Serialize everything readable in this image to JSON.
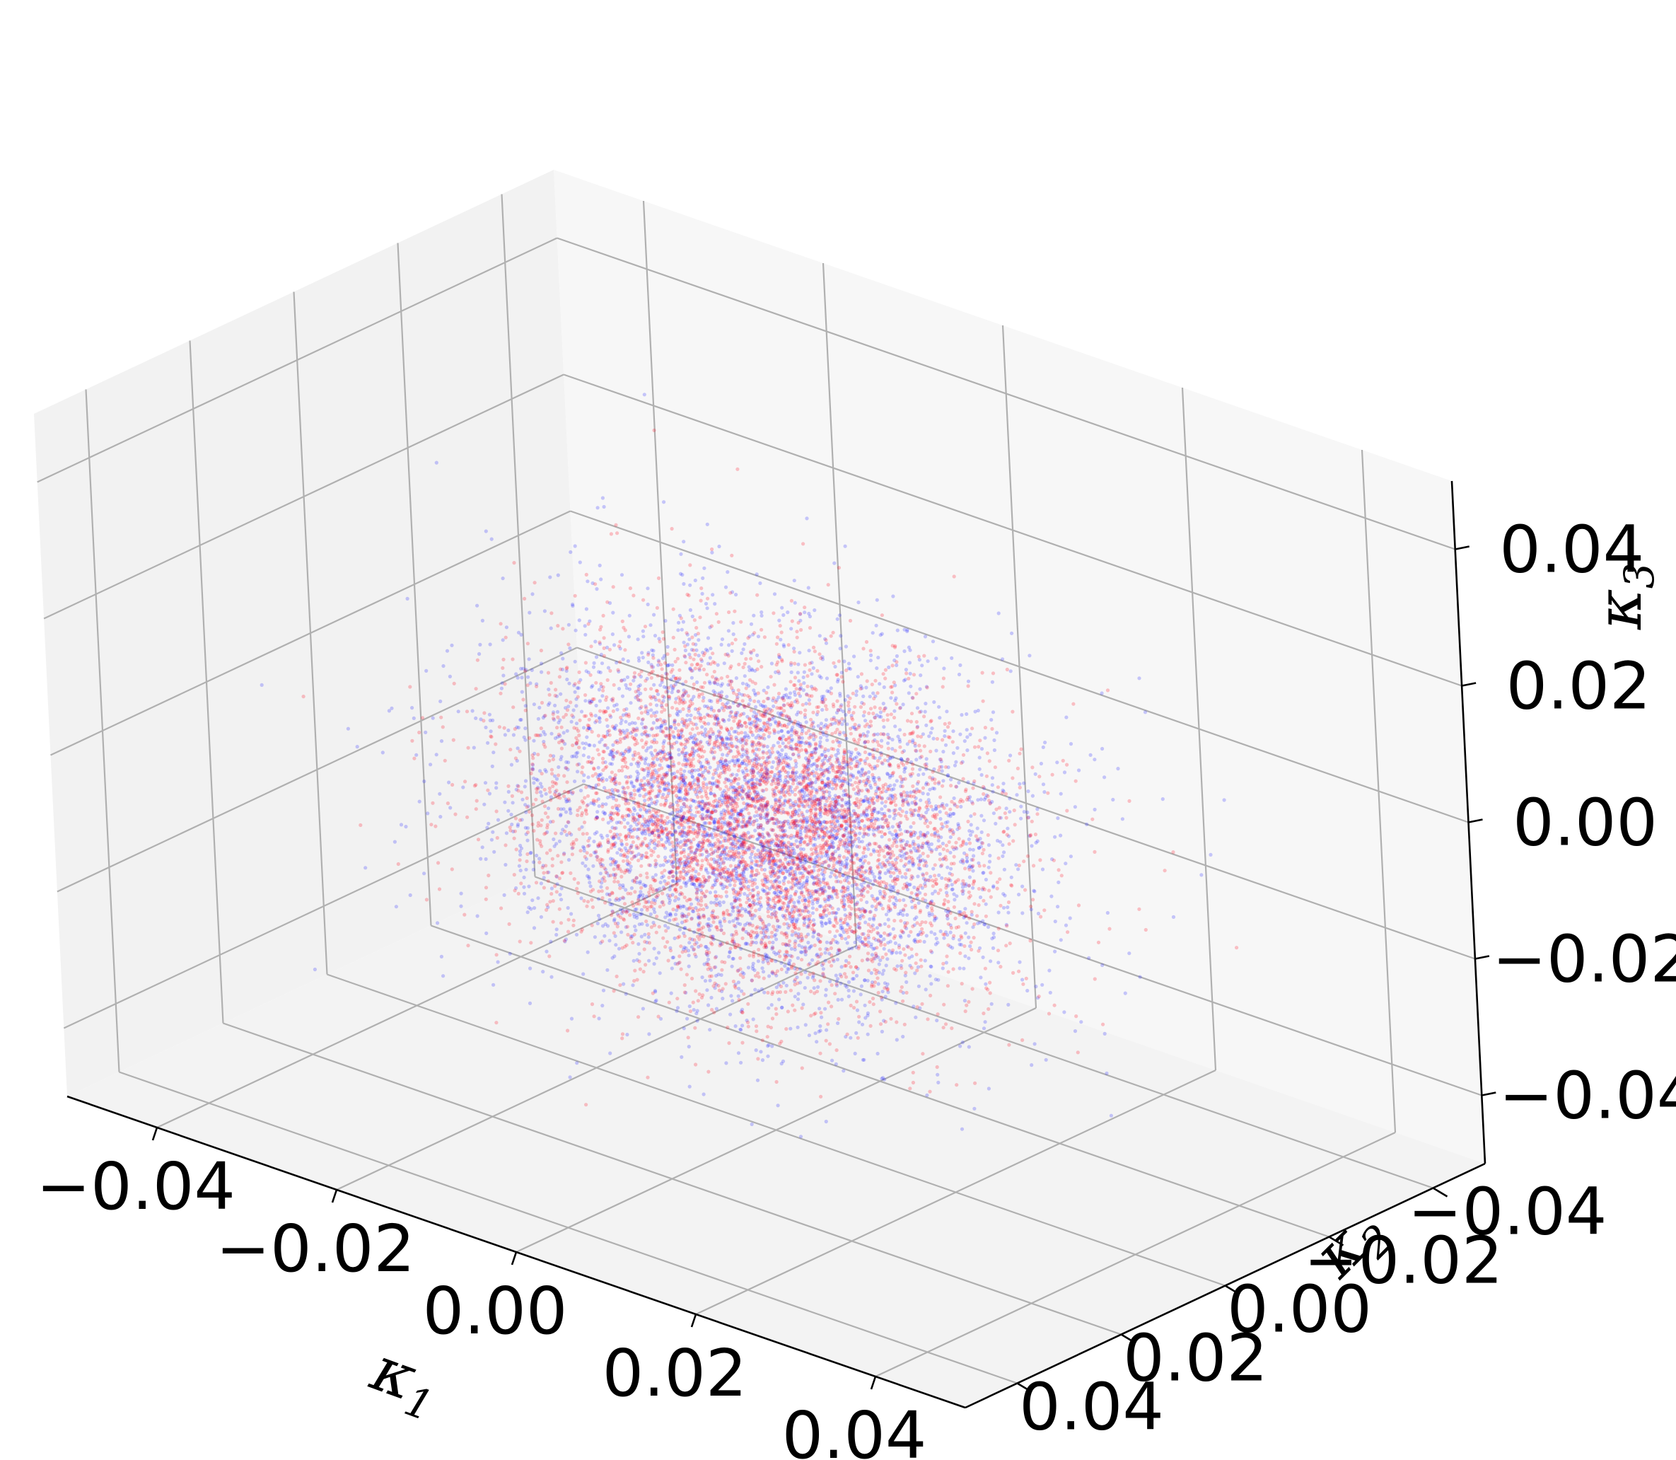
{
  "chart_data": {
    "type": "scatter",
    "projection": "3d",
    "title": "",
    "xlabel": "κ",
    "xlabel_sub": "1",
    "ylabel": "κ",
    "ylabel_sub": "2",
    "zlabel": "κ",
    "zlabel_sub": "3",
    "xlim": [
      -0.05,
      0.05
    ],
    "ylim": [
      -0.05,
      0.05
    ],
    "zlim": [
      -0.05,
      0.05
    ],
    "x_ticks": [
      -0.04,
      -0.02,
      0.0,
      0.02,
      0.04
    ],
    "y_ticks": [
      -0.04,
      -0.02,
      0.0,
      0.02,
      0.04
    ],
    "z_ticks": [
      -0.04,
      -0.02,
      0.0,
      0.02,
      0.04
    ],
    "x_tick_labels": [
      "−0.04",
      "−0.02",
      "0.00",
      "0.02",
      "0.04"
    ],
    "y_tick_labels": [
      "−0.04",
      "−0.02",
      "0.00",
      "0.02",
      "0.04"
    ],
    "z_tick_labels": [
      "−0.04",
      "−0.02",
      "0.00",
      "0.02",
      "0.04"
    ],
    "grid": true,
    "pane_colors": {
      "x_pane": "#f2f2f2",
      "y_pane": "#f7f7f7",
      "z_pane": "#f3f3f3"
    },
    "series": [
      {
        "color": "#2222ff",
        "marker_alpha": 0.15,
        "distribution": "approximately normal cloud centered at origin",
        "center": [
          0.0,
          0.0,
          -0.005
        ],
        "std": [
          0.012,
          0.012,
          0.012
        ]
      },
      {
        "color": "#ff0a1e",
        "marker_alpha": 0.15,
        "distribution": "approximately normal cloud centered at origin, denser core",
        "center": [
          0.0,
          0.0,
          -0.005
        ],
        "std": [
          0.011,
          0.011,
          0.011
        ]
      }
    ]
  }
}
